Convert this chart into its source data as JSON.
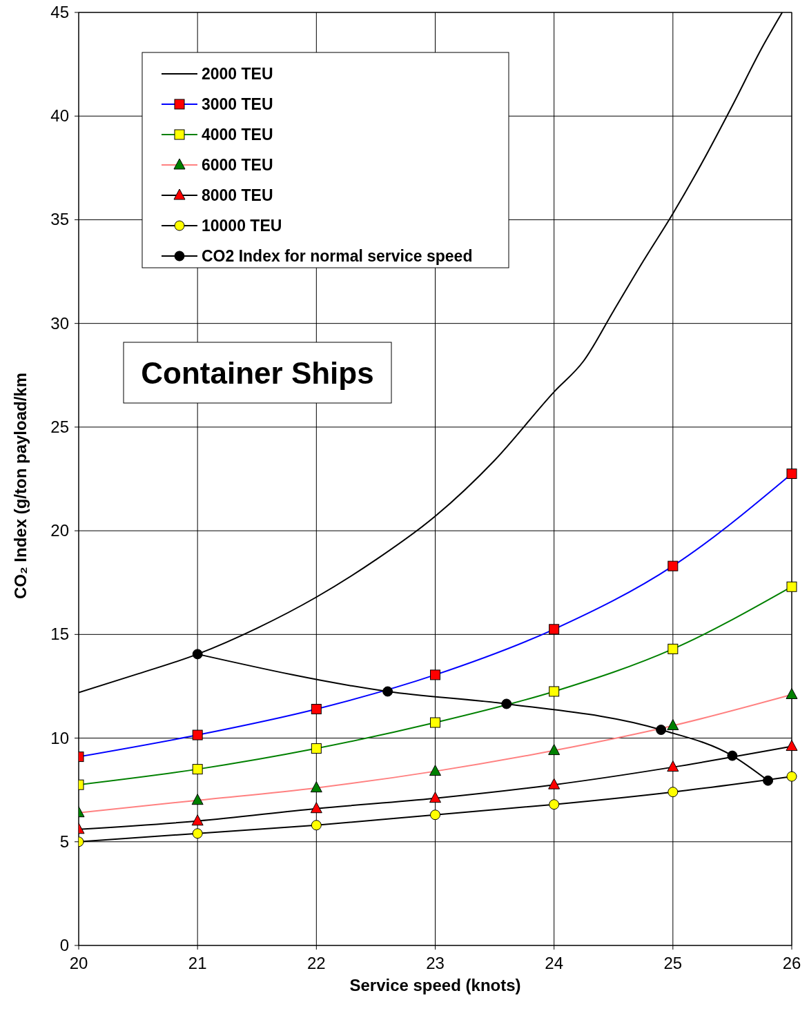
{
  "chart_data": {
    "type": "line",
    "xlabel": "Service speed (knots)",
    "ylabel": "CO₂ Index (g/ton payload/km",
    "xlim": [
      20,
      26
    ],
    "ylim": [
      0,
      45
    ],
    "xticks": [
      20,
      21,
      22,
      23,
      24,
      25,
      26
    ],
    "yticks": [
      0,
      5,
      10,
      15,
      20,
      25,
      30,
      35,
      40,
      45
    ],
    "grid": true,
    "legend": "top left",
    "annotations": [
      "Container Ships"
    ],
    "series": [
      {
        "name": "2000 TEU",
        "color": "#000000",
        "marker": "none",
        "x": [
          20,
          20.5,
          21,
          21.5,
          22,
          22.5,
          23,
          23.5,
          24,
          24.25,
          24.5,
          24.75,
          25,
          25.25,
          25.5,
          25.75,
          25.92
        ],
        "values": [
          12.2,
          13.1,
          14.05,
          15.3,
          16.8,
          18.6,
          20.7,
          23.4,
          26.7,
          28.2,
          30.6,
          33,
          35.3,
          37.8,
          40.5,
          43.3,
          45
        ]
      },
      {
        "name": "3000 TEU",
        "color": "#0000ff",
        "colors": [
          "#ff0000",
          "#ff0000",
          "#ff0000",
          "#ff0000",
          "#ff0000",
          "#ff0000",
          "#ff0000"
        ],
        "marker": "square",
        "x": [
          20,
          21,
          22,
          23,
          24,
          25,
          26
        ],
        "values": [
          9.1,
          10.15,
          11.4,
          13.05,
          15.25,
          18.3,
          22.75
        ]
      },
      {
        "name": "4000 TEU",
        "color": "#008000",
        "colors": [
          "#ffff00",
          "#ffff00",
          "#ffff00",
          "#ffff00",
          "#ffff00",
          "#ffff00",
          "#ffff00"
        ],
        "marker": "square",
        "x": [
          20,
          21,
          22,
          23,
          24,
          25,
          26
        ],
        "values": [
          7.75,
          8.5,
          9.5,
          10.75,
          12.25,
          14.3,
          17.3
        ]
      },
      {
        "name": "6000 TEU",
        "color": "#ff8080",
        "colors": [
          "#008000",
          "#008000",
          "#008000",
          "#008000",
          "#008000",
          "#008000",
          "#008000"
        ],
        "marker": "triangle",
        "x": [
          20,
          21,
          22,
          23,
          24,
          25,
          26
        ],
        "values": [
          6.4,
          7.0,
          7.6,
          8.4,
          9.4,
          10.6,
          12.1
        ]
      },
      {
        "name": "8000 TEU",
        "color": "#000000",
        "colors": [
          "#ff0000",
          "#ff0000",
          "#ff0000",
          "#ff0000",
          "#ff0000",
          "#ff0000",
          "#ff0000"
        ],
        "marker": "triangle",
        "x": [
          20,
          21,
          22,
          23,
          24,
          25,
          26
        ],
        "values": [
          5.6,
          6.0,
          6.6,
          7.1,
          7.75,
          8.6,
          9.6
        ]
      },
      {
        "name": "10000 TEU",
        "color": "#000000",
        "colors": [
          "#ffff00",
          "#ffff00",
          "#ffff00",
          "#ffff00",
          "#ffff00",
          "#ffff00",
          "#ffff00"
        ],
        "marker": "circle",
        "x": [
          20,
          21,
          22,
          23,
          24,
          25,
          26
        ],
        "values": [
          5.0,
          5.4,
          5.8,
          6.3,
          6.8,
          7.4,
          8.15
        ]
      },
      {
        "name": "CO2 Index for normal service speed",
        "color": "#000000",
        "colors": [
          "#000000",
          "#000000",
          "#000000",
          "#000000",
          "#000000",
          "#000000"
        ],
        "marker": "circle",
        "x": [
          21,
          22.6,
          23.6,
          24.9,
          25.5,
          25.8
        ],
        "values": [
          14.05,
          12.25,
          11.65,
          10.4,
          9.15,
          7.95
        ]
      }
    ]
  }
}
